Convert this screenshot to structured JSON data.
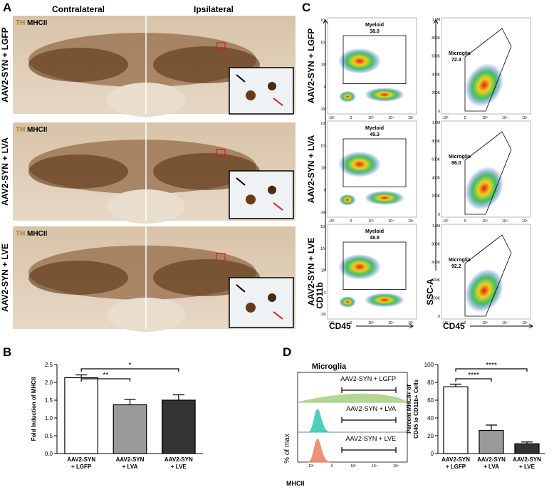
{
  "panels": {
    "A": {
      "letter": "A",
      "left_header": "Contralateral",
      "right_header": "Ipsilateral",
      "stain_th": "TH",
      "stain_mhc": "MHCII",
      "rows": [
        {
          "label": "AAV2-SYN + LGFP"
        },
        {
          "label": "AAV2-SYN + LVA"
        },
        {
          "label": "AAV2-SYN + LVE"
        }
      ]
    },
    "B": {
      "letter": "B"
    },
    "C": {
      "letter": "C",
      "myeloid_gate": "Myeloid",
      "microglia_gate": "Microglia",
      "myeloid_values": [
        "38.0",
        "49.3",
        "48.8"
      ],
      "microglia_values": [
        "72.3",
        "86.0",
        "92.2"
      ],
      "left_y_label": "CD11b",
      "left_x_label": "CD45",
      "right_y_label": "SSC-A",
      "right_x_label": "CD45",
      "log_ticks": [
        "-10³",
        "0",
        "10³",
        "10⁴",
        "10⁵"
      ],
      "ssc_ticks": [
        "0",
        "200K",
        "400K",
        "600K",
        "800K",
        "1.0M"
      ]
    },
    "D": {
      "letter": "D",
      "histogram_title": "Microglia",
      "histogram_rows": [
        "AAV2-SYN + LGFP",
        "AAV2-SYN + LVA",
        "AAV2-SYN + LVE"
      ],
      "y_label": "% of max",
      "x_label": "MHCII"
    }
  },
  "chart_data": [
    {
      "type": "bar",
      "ylabel": "Fold Induction of MHCII",
      "categories": [
        "AAV2-SYN\n+ LGFP",
        "AAV2-SYN\n+ LVA",
        "AAV2-SYN\n+ LVE"
      ],
      "values": [
        2.13,
        1.37,
        1.5
      ],
      "errors": [
        0.08,
        0.15,
        0.15
      ],
      "colors": [
        "#ffffff",
        "#999999",
        "#333333"
      ],
      "ylim": [
        0,
        2.5
      ],
      "yticks": [
        {
          "value": 0,
          "label": "0.0"
        },
        0.5,
        {
          "value": 1,
          "label": "1.0"
        },
        1.5,
        {
          "value": 2,
          "label": "2.0"
        },
        2.5
      ],
      "comparisons": [
        {
          "between": [
            0,
            1
          ],
          "label": "**"
        },
        {
          "between": [
            0,
            2
          ],
          "label": "*"
        }
      ]
    },
    {
      "type": "bar",
      "ylabel": "Percent MHCII+ of\nCD45 lo CD11b+ Cells",
      "categories": [
        "AAV2-SYN\n+ LGFP",
        "AAV2-SYN\n+ LVA",
        "AAV2-SYN\n+ LVE"
      ],
      "values": [
        75,
        26,
        11
      ],
      "errors": [
        3,
        6,
        2
      ],
      "colors": [
        "#ffffff",
        "#999999",
        "#333333"
      ],
      "ylim": [
        0,
        100
      ],
      "yticks": [
        0,
        20,
        40,
        60,
        80,
        100
      ],
      "comparisons": [
        {
          "between": [
            0,
            1
          ],
          "label": "****"
        },
        {
          "between": [
            0,
            2
          ],
          "label": "****"
        }
      ]
    }
  ]
}
